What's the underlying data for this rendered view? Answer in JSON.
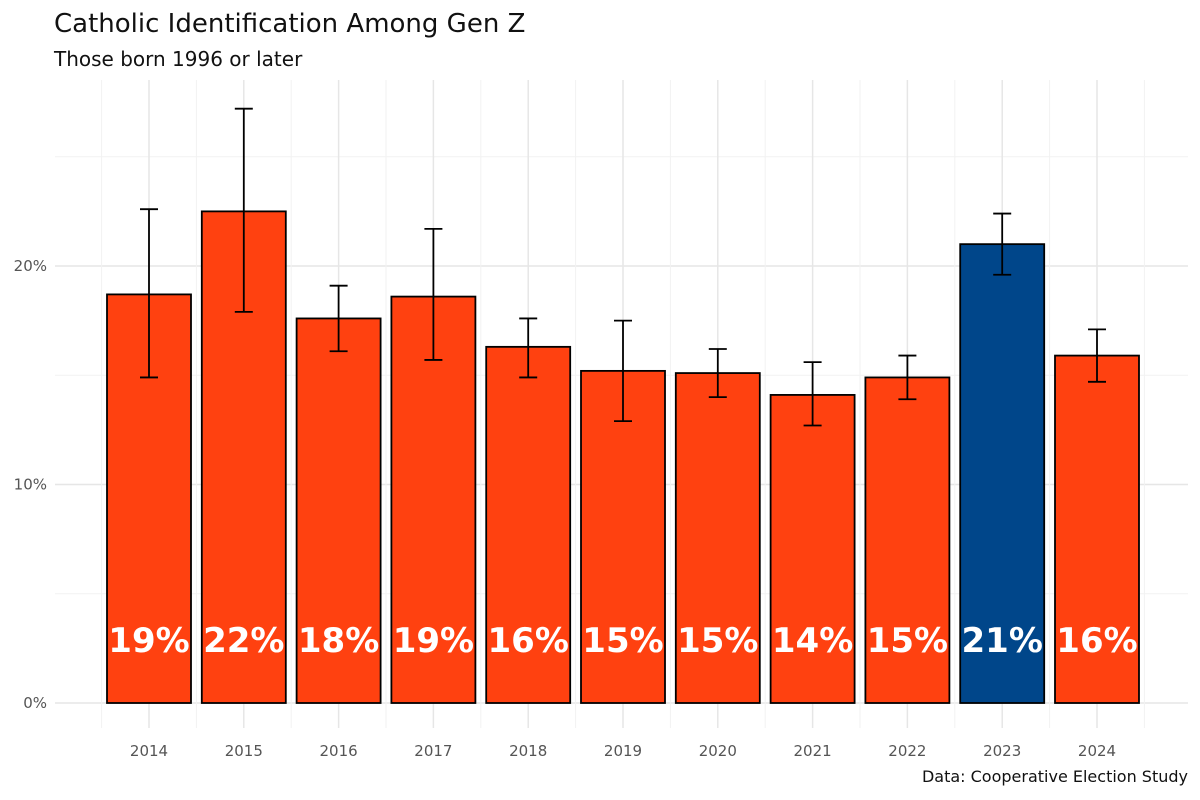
{
  "chart_data": {
    "type": "bar",
    "title": "Catholic Identification Among Gen Z",
    "subtitle": "Those born 1996 or later",
    "caption": "Data: Cooperative Election Study",
    "xlabel": "",
    "ylabel": "",
    "ylim": [
      0,
      27.5
    ],
    "y_ticks": [
      0,
      10,
      20
    ],
    "y_tick_labels": [
      "0%",
      "10%",
      "20%"
    ],
    "grid": true,
    "categories": [
      "2014",
      "2015",
      "2016",
      "2017",
      "2018",
      "2019",
      "2020",
      "2021",
      "2022",
      "2023",
      "2024"
    ],
    "values": [
      18.7,
      22.5,
      17.6,
      18.6,
      16.3,
      15.2,
      15.1,
      14.1,
      14.9,
      21.0,
      15.9
    ],
    "error_low": [
      14.9,
      17.9,
      16.1,
      15.7,
      14.9,
      12.9,
      14.0,
      12.7,
      13.9,
      19.6,
      14.7
    ],
    "error_high": [
      22.6,
      27.2,
      19.1,
      21.7,
      17.6,
      17.5,
      16.2,
      15.6,
      15.9,
      22.4,
      17.1
    ],
    "labels": [
      "19%",
      "22%",
      "18%",
      "19%",
      "16%",
      "15%",
      "15%",
      "14%",
      "15%",
      "21%",
      "16%"
    ],
    "highlight_index": 9,
    "colors": {
      "default": "#FF4110",
      "highlight": "#00468A",
      "grid_major": "#e6e6e6",
      "grid_minor": "#f2f2f2",
      "outline": "#000000"
    }
  }
}
